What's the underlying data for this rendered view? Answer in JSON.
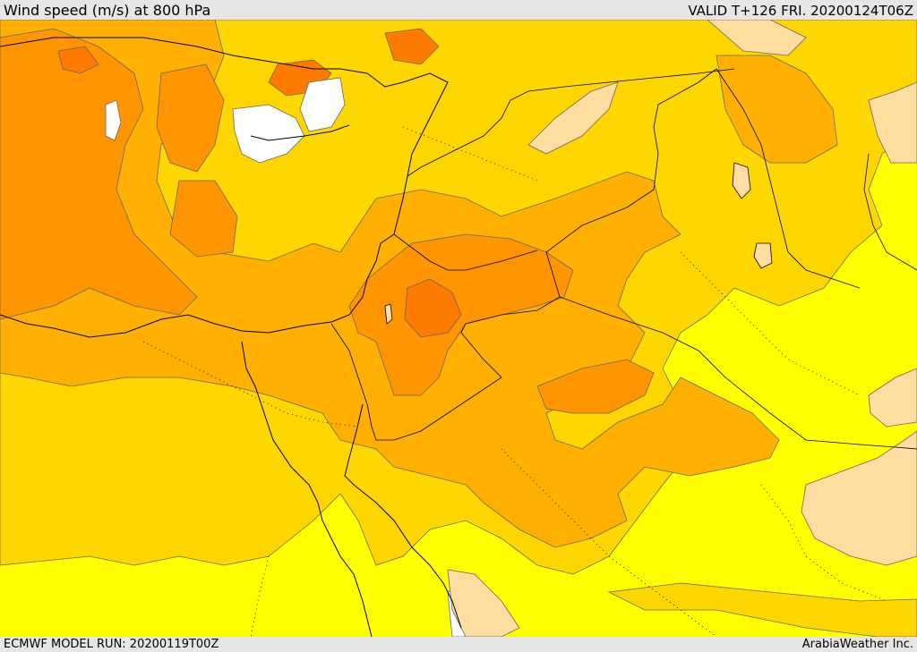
{
  "header": {
    "title": "Wind speed (m/s) at 800 hPa",
    "valid": "VALID T+126 FRI. 20200124T06Z"
  },
  "footer": {
    "model_run": "ECMWF MODEL RUN: 20200119T00Z",
    "brand": "ArabiaWeather Inc."
  },
  "colors": {
    "band_0_5": "#ffffff",
    "band_5_10": "#ffff00",
    "band_10_15": "#ffd700",
    "band_15_20": "#ffb000",
    "band_20_25": "#ff9500",
    "band_25_30": "#ff7b00",
    "desert_pale": "#fddda0",
    "contour_line": "#666666",
    "border_line": "#000000"
  }
}
